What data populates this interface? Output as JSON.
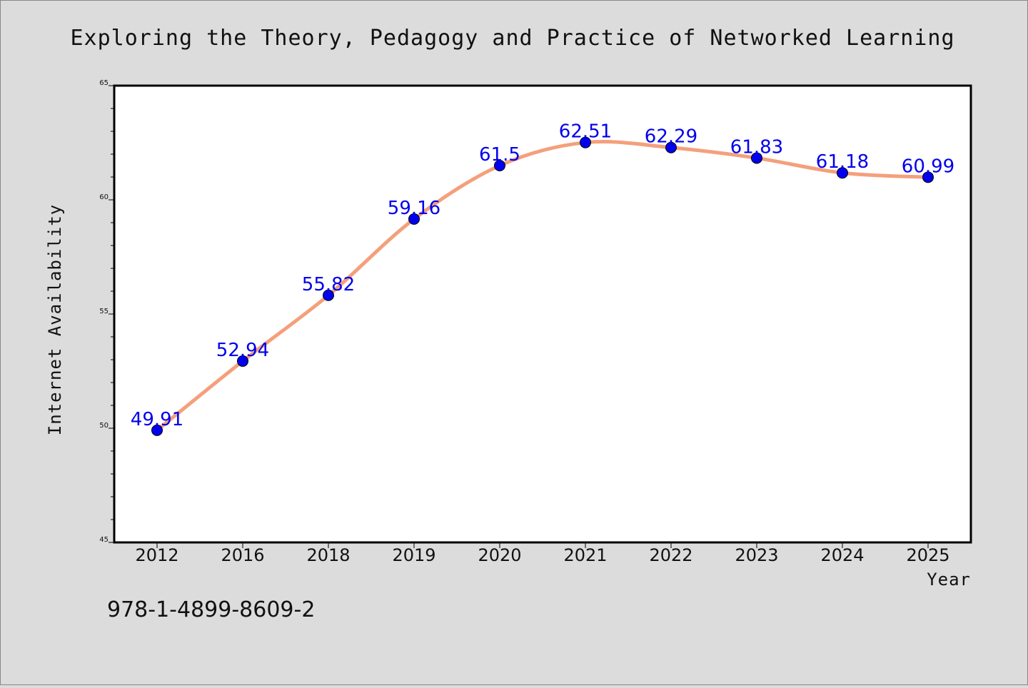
{
  "chart_data": {
    "type": "line",
    "title": "Exploring the Theory, Pedagogy and Practice of Networked Learning",
    "xlabel": "Year",
    "ylabel": "Internet Availability",
    "categories": [
      "2012",
      "2016",
      "2018",
      "2019",
      "2020",
      "2021",
      "2022",
      "2023",
      "2024",
      "2025"
    ],
    "values": [
      49.91,
      52.94,
      55.82,
      59.16,
      61.5,
      62.51,
      62.29,
      61.83,
      61.18,
      60.99
    ],
    "data_labels": [
      "49.91",
      "52.94",
      "55.82",
      "59.16",
      "61.5",
      "62.51",
      "62.29",
      "61.83",
      "61.18",
      "60.99"
    ],
    "ylim": [
      45,
      65
    ],
    "yticks": [
      "45",
      "50",
      "55",
      "60",
      "65"
    ],
    "line_color": "#f4a07c",
    "marker_color": "#0000ee",
    "grid": false,
    "legend": "none"
  },
  "footer": {
    "isbn": "978-1-4899-8609-2"
  }
}
